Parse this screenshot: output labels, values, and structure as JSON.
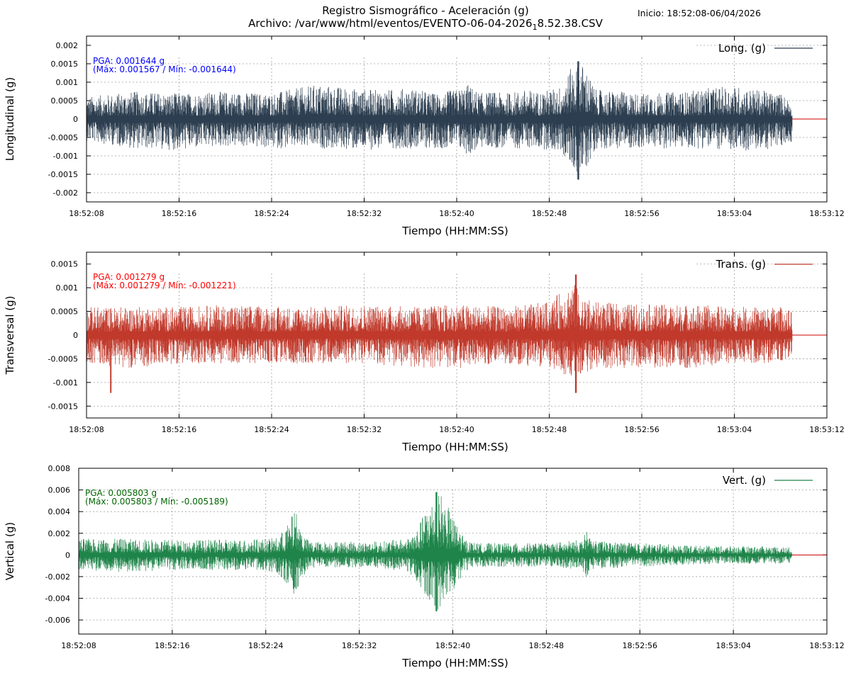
{
  "header": {
    "title_line1": "Registro Sismográfico - Aceleración (g)",
    "title_line2": "Archivo: /var/www/html/eventos/EVENTO-06-04-2026",
    "title_sub": "1",
    "title_tail": "8.52.38.CSV",
    "start_label": "Inicio: 18:52:08-06/04/2026"
  },
  "chart_data": [
    {
      "type": "line",
      "name": "longitudinal",
      "ylabel": "Longitudinal (g)",
      "xlabel": "Tiempo (HH:MM:SS)",
      "legend": "Long. (g)",
      "legend_position": "top-right",
      "color": "#2c3e50",
      "ylim": [
        -0.00225,
        0.00225
      ],
      "yticks": [
        0.002,
        0.0015,
        0.001,
        0.0005,
        0,
        -0.0005,
        -0.001,
        -0.0015,
        -0.002
      ],
      "ytick_labels": [
        "0.002",
        "0.0015",
        "0.001",
        "0.0005",
        "0",
        "-0.0005",
        "-0.001",
        "-0.0015",
        "-0.002"
      ],
      "xticks": [
        "18:52:08",
        "18:52:16",
        "18:52:24",
        "18:52:32",
        "18:52:40",
        "18:52:48",
        "18:52:56",
        "18:53:04",
        "18:53:12"
      ],
      "xlim_seconds": [
        0,
        64
      ],
      "data_end_seconds": 61,
      "annotation": {
        "pga": "PGA: 0.001644 g",
        "range": "(Máx: 0.001567 / Mín: -0.001644)",
        "color": "#0000ff"
      },
      "envelope": {
        "t": [
          0,
          4,
          8,
          12,
          16,
          20,
          24,
          26,
          28,
          30,
          32,
          33,
          34,
          35,
          36,
          38,
          39,
          40,
          41,
          42,
          43,
          44,
          48,
          52,
          54,
          56,
          60,
          61
        ],
        "max": [
          0.0006,
          0.00075,
          0.0007,
          0.00075,
          0.0007,
          0.00095,
          0.0008,
          0.0008,
          0.00085,
          0.0007,
          0.0008,
          0.00095,
          0.0007,
          0.00075,
          0.0007,
          0.0008,
          0.00075,
          0.0008,
          0.0009,
          0.00145,
          0.0015,
          0.0008,
          0.0007,
          0.00075,
          0.00085,
          0.0009,
          0.0007,
          0.0005
        ],
        "min": [
          -0.0006,
          -0.0008,
          -0.00085,
          -0.00075,
          -0.0008,
          -0.0008,
          -0.00085,
          -0.0008,
          -0.0008,
          -0.0008,
          -0.0008,
          -0.001,
          -0.0008,
          -0.0008,
          -0.0008,
          -0.0008,
          -0.0008,
          -0.00085,
          -0.0009,
          -0.0014,
          -0.0015,
          -0.0008,
          -0.0008,
          -0.0008,
          -0.0008,
          -0.0009,
          -0.0008,
          -0.0006
        ],
        "peak_t": 42.5,
        "peak_max": 0.001567,
        "peak_min": -0.001644
      }
    },
    {
      "type": "line",
      "name": "transversal",
      "ylabel": "Transversal (g)",
      "xlabel": "Tiempo (HH:MM:SS)",
      "legend": "Trans. (g)",
      "legend_position": "top-right",
      "color": "#c0392b",
      "ylim": [
        -0.00175,
        0.00175
      ],
      "yticks": [
        0.0015,
        0.001,
        0.0005,
        0,
        -0.0005,
        -0.001,
        -0.0015
      ],
      "ytick_labels": [
        "0.0015",
        "0.001",
        "0.0005",
        "0",
        "-0.0005",
        "-0.001",
        "-0.0015"
      ],
      "xticks": [
        "18:52:08",
        "18:52:16",
        "18:52:24",
        "18:52:32",
        "18:52:40",
        "18:52:48",
        "18:52:56",
        "18:53:04",
        "18:53:12"
      ],
      "xlim_seconds": [
        0,
        64
      ],
      "data_end_seconds": 61,
      "annotation": {
        "pga": "PGA: 0.001279 g",
        "range": "(Máx: 0.001279 / Mín: -0.001221)",
        "color": "#ff0000"
      },
      "envelope": {
        "t": [
          0,
          4,
          8,
          12,
          16,
          20,
          24,
          28,
          32,
          36,
          40,
          42,
          43,
          44,
          48,
          52,
          56,
          60,
          61
        ],
        "max": [
          0.0006,
          0.0006,
          0.0006,
          0.00065,
          0.0006,
          0.0006,
          0.00065,
          0.0006,
          0.00065,
          0.0006,
          0.0007,
          0.00115,
          0.0008,
          0.0007,
          0.00065,
          0.00065,
          0.0006,
          0.0006,
          0.0005
        ],
        "min": [
          -0.0006,
          -0.0007,
          -0.0006,
          -0.0006,
          -0.0006,
          -0.0006,
          -0.0006,
          -0.0007,
          -0.0007,
          -0.0006,
          -0.0007,
          -0.0009,
          -0.0008,
          -0.0007,
          -0.0007,
          -0.0007,
          -0.0006,
          -0.0006,
          -0.0005
        ],
        "peak_t": 42.3,
        "peak_max": 0.001279,
        "peak_min": -0.001221,
        "low_spike_t": 2.1
      }
    },
    {
      "type": "line",
      "name": "vertical",
      "ylabel": "Vertical (g)",
      "xlabel": "Tiempo (HH:MM:SS)",
      "legend": "Vert. (g)",
      "legend_position": "top-right",
      "color": "#1e8449",
      "ylim": [
        -0.0073,
        0.008
      ],
      "yticks": [
        0.008,
        0.006,
        0.004,
        0.002,
        0,
        -0.002,
        -0.004,
        -0.006
      ],
      "ytick_labels": [
        "0.008",
        "0.006",
        "0.004",
        "0.002",
        "0",
        "-0.002",
        "-0.004",
        "-0.006"
      ],
      "xticks": [
        "18:52:08",
        "18:52:16",
        "18:52:24",
        "18:52:32",
        "18:52:40",
        "18:52:48",
        "18:52:56",
        "18:53:04",
        "18:53:12"
      ],
      "xlim_seconds": [
        0,
        64
      ],
      "data_end_seconds": 61,
      "annotation": {
        "pga": "PGA: 0.005803 g",
        "range": "(Máx: 0.005803 / Mín: -0.005189)",
        "color": "#006400"
      },
      "envelope": {
        "t": [
          0,
          4,
          8,
          12,
          16,
          17,
          18,
          18.5,
          19,
          19.5,
          20,
          22,
          24,
          26,
          28,
          29,
          30,
          31,
          32,
          33,
          34,
          35,
          36,
          40,
          43,
          43.5,
          44,
          48,
          52,
          56,
          60,
          61
        ],
        "max": [
          0.0015,
          0.0015,
          0.0014,
          0.0014,
          0.0015,
          0.0016,
          0.003,
          0.0044,
          0.0025,
          0.0015,
          0.0012,
          0.0013,
          0.0012,
          0.0013,
          0.0015,
          0.0025,
          0.005,
          0.0058,
          0.0035,
          0.0015,
          0.0011,
          0.0011,
          0.0011,
          0.0011,
          0.0014,
          0.0022,
          0.0013,
          0.0011,
          0.0009,
          0.0008,
          0.0008,
          0.0007
        ],
        "min": [
          -0.0015,
          -0.0016,
          -0.0014,
          -0.0014,
          -0.0015,
          -0.0017,
          -0.003,
          -0.0039,
          -0.0025,
          -0.0015,
          -0.0012,
          -0.0012,
          -0.0012,
          -0.0013,
          -0.0015,
          -0.0025,
          -0.0045,
          -0.0052,
          -0.0035,
          -0.0015,
          -0.0011,
          -0.0011,
          -0.0011,
          -0.0011,
          -0.0014,
          -0.0022,
          -0.0013,
          -0.0011,
          -0.0009,
          -0.0008,
          -0.0008,
          -0.0007
        ],
        "peak_t": 30.6,
        "peak_max": 0.005803,
        "peak_min": -0.005189
      }
    }
  ],
  "colors": {
    "zero_line": "#cc0000",
    "grid": "#a0a0a0"
  }
}
